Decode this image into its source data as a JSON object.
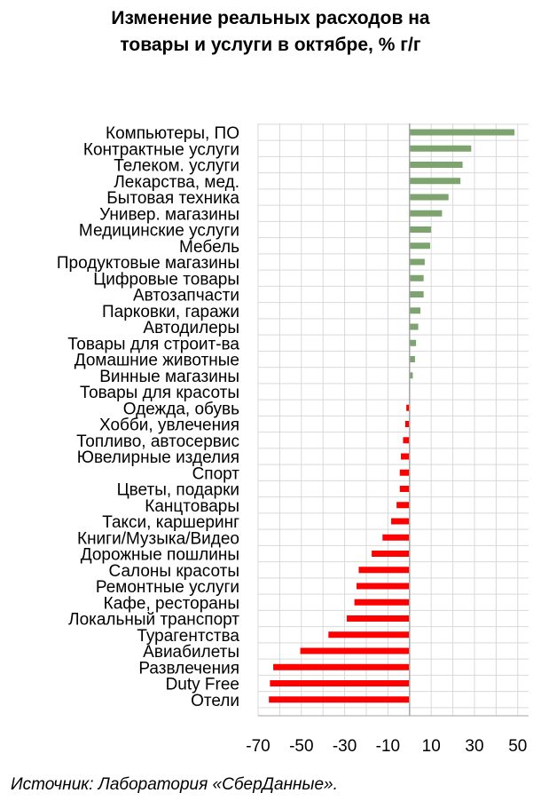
{
  "title_line1": "Изменение реальных расходов на",
  "title_line2": "товары и услуги в октябре, % г/г",
  "source": "Источник: Лаборатория «СберДанные».",
  "colors": {
    "positive": "#7da36e",
    "negative": "#ff0000",
    "grid": "#d9d9d9",
    "axis": "#a6a6a6"
  },
  "chart_data": {
    "type": "bar",
    "orientation": "horizontal",
    "title": "Изменение реальных расходов на товары и услуги в октябре, % г/г",
    "xlim": [
      -70,
      55
    ],
    "x_ticks": [
      -70,
      -50,
      -30,
      -10,
      10,
      30,
      50
    ],
    "x_tick_labels": [
      "-70",
      "-50",
      "-30",
      "-10",
      "10",
      "30",
      "50"
    ],
    "grid": true,
    "categories": [
      "Компьютеры, ПО",
      "Контрактные услуги",
      "Телеком. услуги",
      "Лекарства, мед.",
      "Бытовая техника",
      "Универ. магазины",
      "Медицинские услуги",
      "Мебель",
      "Продуктовые магазины",
      "Цифровые товары",
      "Автозапчасти",
      "Парковки, гаражи",
      "Автодилеры",
      "Товары для строит-ва",
      "Домашние животные",
      "Винные магазины",
      "Товары для красоты",
      "Одежда, обувь",
      "Хобби, увлечения",
      "Топливо, автосервис",
      "Ювелирные изделия",
      "Спорт",
      "Цветы, подарки",
      "Канцтовары",
      "Такси, каршеринг",
      "Книги/Музыка/Видео",
      "Дорожные пошлины",
      "Салоны красоты",
      "Ремонтные услуги",
      "Кафе, рестораны",
      "Локальный транспорт",
      "Турагентства",
      "Авиабилеты",
      "Развлечения",
      "Duty Free",
      "Отели"
    ],
    "values": [
      48.5,
      28.5,
      24.5,
      23.5,
      18.0,
      15.0,
      10.0,
      9.5,
      7.0,
      6.5,
      6.5,
      5.0,
      4.0,
      3.0,
      2.5,
      1.5,
      0,
      -1.5,
      -2.0,
      -3.0,
      -4.0,
      -4.5,
      -4.5,
      -6.0,
      -8.5,
      -12.5,
      -17.5,
      -23.5,
      -24.5,
      -25.5,
      -29.0,
      -37.5,
      -50.5,
      -63.0,
      -64.5,
      -65.0
    ]
  }
}
